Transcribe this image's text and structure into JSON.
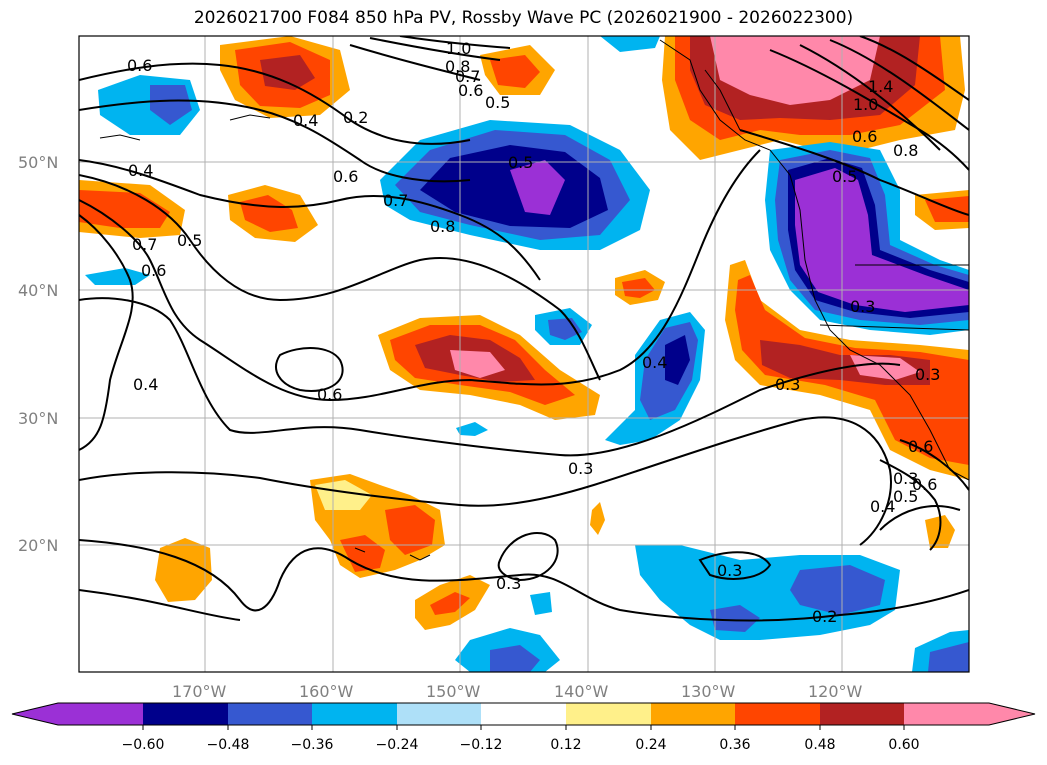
{
  "title": "2026021700 F084 850 hPa PV, Rossby Wave PC (2026021900 - 2026022300)",
  "map": {
    "lat_labels": [
      "50°N",
      "40°N",
      "30°N",
      "20°N"
    ],
    "lon_labels": [
      "170°W",
      "160°W",
      "150°W",
      "140°W",
      "130°W",
      "120°W"
    ],
    "colors": {
      "neg_060": "#9b30d6",
      "neg_048": "#00008b",
      "neg_036": "#3658d0",
      "neg_024": "#00b4f0",
      "neg_012": "#aee0f8",
      "pos_012": "#fff08a",
      "pos_024": "#ffa500",
      "pos_036": "#ff4500",
      "pos_048": "#b22222",
      "pos_060": "#ff88aa",
      "contour": "#000000"
    },
    "contour_labels": [
      "1.0",
      "0.8",
      "0.7",
      "0.6",
      "0.5",
      "0.6",
      "0.4",
      "0.2",
      "1.4",
      "1.0",
      "0.6",
      "0.8",
      "0.5",
      "0.4",
      "0.6",
      "0.7",
      "0.8",
      "0.5",
      "0.5",
      "0.7",
      "0.6",
      "0.3",
      "0.3",
      "0.6",
      "0.3",
      "0.4",
      "0.4",
      "0.3",
      "0.6",
      "0.3",
      "0.5",
      "0.6",
      "0.4",
      "0.3",
      "0.3",
      "0.2"
    ]
  },
  "colorbar": {
    "ticks": [
      "−0.60",
      "−0.48",
      "−0.36",
      "−0.24",
      "−0.12",
      "0.12",
      "0.24",
      "0.36",
      "0.48",
      "0.60"
    ]
  }
}
